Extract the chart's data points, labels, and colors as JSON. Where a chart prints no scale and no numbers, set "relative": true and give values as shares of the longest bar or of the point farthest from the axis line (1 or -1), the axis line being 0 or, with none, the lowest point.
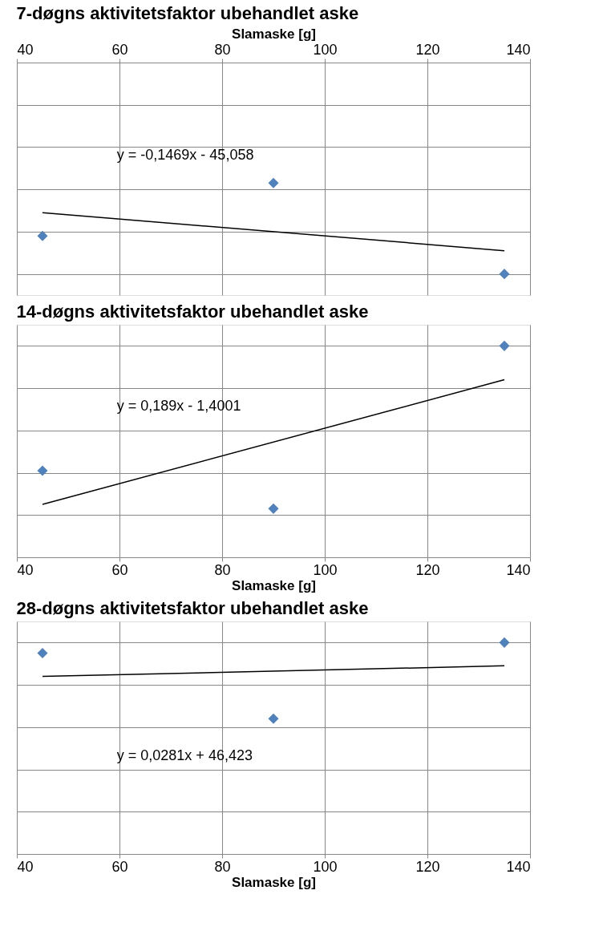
{
  "chart_data": [
    {
      "type": "scatter",
      "title": "7-døgns aktivitetsfaktor ubehandlet aske",
      "xlabel": "Slamaske [g]",
      "xlim": [
        40,
        140
      ],
      "xticks": [
        40,
        60,
        80,
        100,
        120,
        140
      ],
      "relative": true,
      "grid": true,
      "tick_labels": "x",
      "series": [
        {
          "color": "#4f81bd",
          "marker": "diamond",
          "x": [
            45,
            90,
            135
          ],
          "values": [
            -0.82,
            -0.57,
            -1
          ]
        },
        {
          "type": "line",
          "color": "#000000",
          "marker": "none",
          "line_style": "solid",
          "x": [
            45,
            135
          ],
          "values": [
            -0.71,
            -0.89
          ]
        }
      ],
      "annotations": [
        "y = -0,1469x - 45,058"
      ]
    },
    {
      "type": "scatter",
      "title": "14-døgns aktivitetsfaktor ubehandlet aske",
      "xlabel": "Slamaske [g]",
      "xlim": [
        40,
        140
      ],
      "xticks": [
        40,
        60,
        80,
        100,
        120,
        140
      ],
      "relative": true,
      "grid": true,
      "tick_labels": "x",
      "series": [
        {
          "color": "#4f81bd",
          "marker": "diamond",
          "x": [
            45,
            90,
            135
          ],
          "values": [
            0.41,
            0.23,
            1
          ]
        },
        {
          "type": "line",
          "color": "#000000",
          "marker": "none",
          "line_style": "solid",
          "x": [
            45,
            135
          ],
          "values": [
            0.25,
            0.84
          ]
        }
      ],
      "annotations": [
        "y = 0,189x - 1,4001"
      ]
    },
    {
      "type": "scatter",
      "title": "28-døgns aktivitetsfaktor ubehandlet aske",
      "xlabel": "Slamaske [g]",
      "xlim": [
        40,
        140
      ],
      "xticks": [
        40,
        60,
        80,
        100,
        120,
        140
      ],
      "relative": true,
      "grid": true,
      "tick_labels": "x",
      "series": [
        {
          "color": "#4f81bd",
          "marker": "diamond",
          "x": [
            45,
            90,
            135
          ],
          "values": [
            0.95,
            0.64,
            1
          ]
        },
        {
          "type": "line",
          "color": "#000000",
          "marker": "none",
          "line_style": "solid",
          "x": [
            45,
            135
          ],
          "values": [
            0.84,
            0.89
          ]
        }
      ],
      "annotations": [
        "y = 0,0281x + 46,423"
      ]
    }
  ]
}
